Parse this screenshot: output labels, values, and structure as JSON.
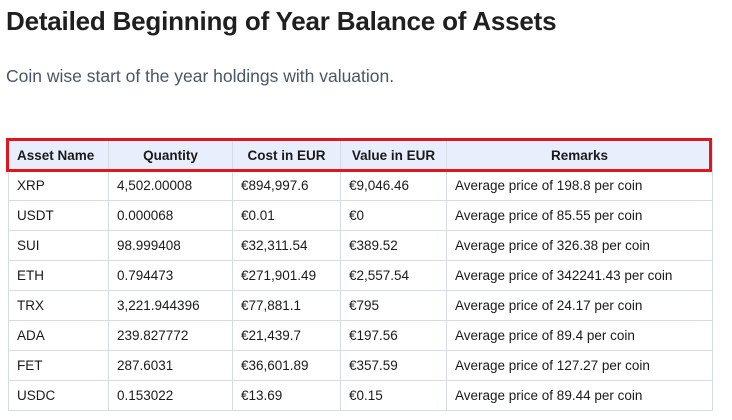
{
  "page": {
    "title": "Detailed Beginning of Year Balance of Assets",
    "subtitle": "Coin wise start of the year holdings with valuation."
  },
  "table": {
    "headers": [
      "Asset Name",
      "Quantity",
      "Cost in EUR",
      "Value in EUR",
      "Remarks"
    ],
    "rows": [
      [
        "XRP",
        "4,502.00008",
        "€894,997.6",
        "€9,046.46",
        "Average price of 198.8 per coin"
      ],
      [
        "USDT",
        "0.000068",
        "€0.01",
        "€0",
        "Average price of 85.55 per coin"
      ],
      [
        "SUI",
        "98.999408",
        "€32,311.54",
        "€389.52",
        "Average price of 326.38 per coin"
      ],
      [
        "ETH",
        "0.794473",
        "€271,901.49",
        "€2,557.54",
        "Average price of 342241.43 per coin"
      ],
      [
        "TRX",
        "3,221.944396",
        "€77,881.1",
        "€795",
        "Average price of 24.17 per coin"
      ],
      [
        "ADA",
        "239.827772",
        "€21,439.7",
        "€197.56",
        "Average price of 89.4 per coin"
      ],
      [
        "FET",
        "287.6031",
        "€36,601.89",
        "€357.59",
        "Average price of 127.27 per coin"
      ],
      [
        "USDC",
        "0.153022",
        "€13.69",
        "€0.15",
        "Average price of 89.44 per coin"
      ]
    ]
  },
  "colors": {
    "header_bg": "#e8eefb",
    "border": "#d6dce6",
    "highlight": "#e0161e"
  }
}
